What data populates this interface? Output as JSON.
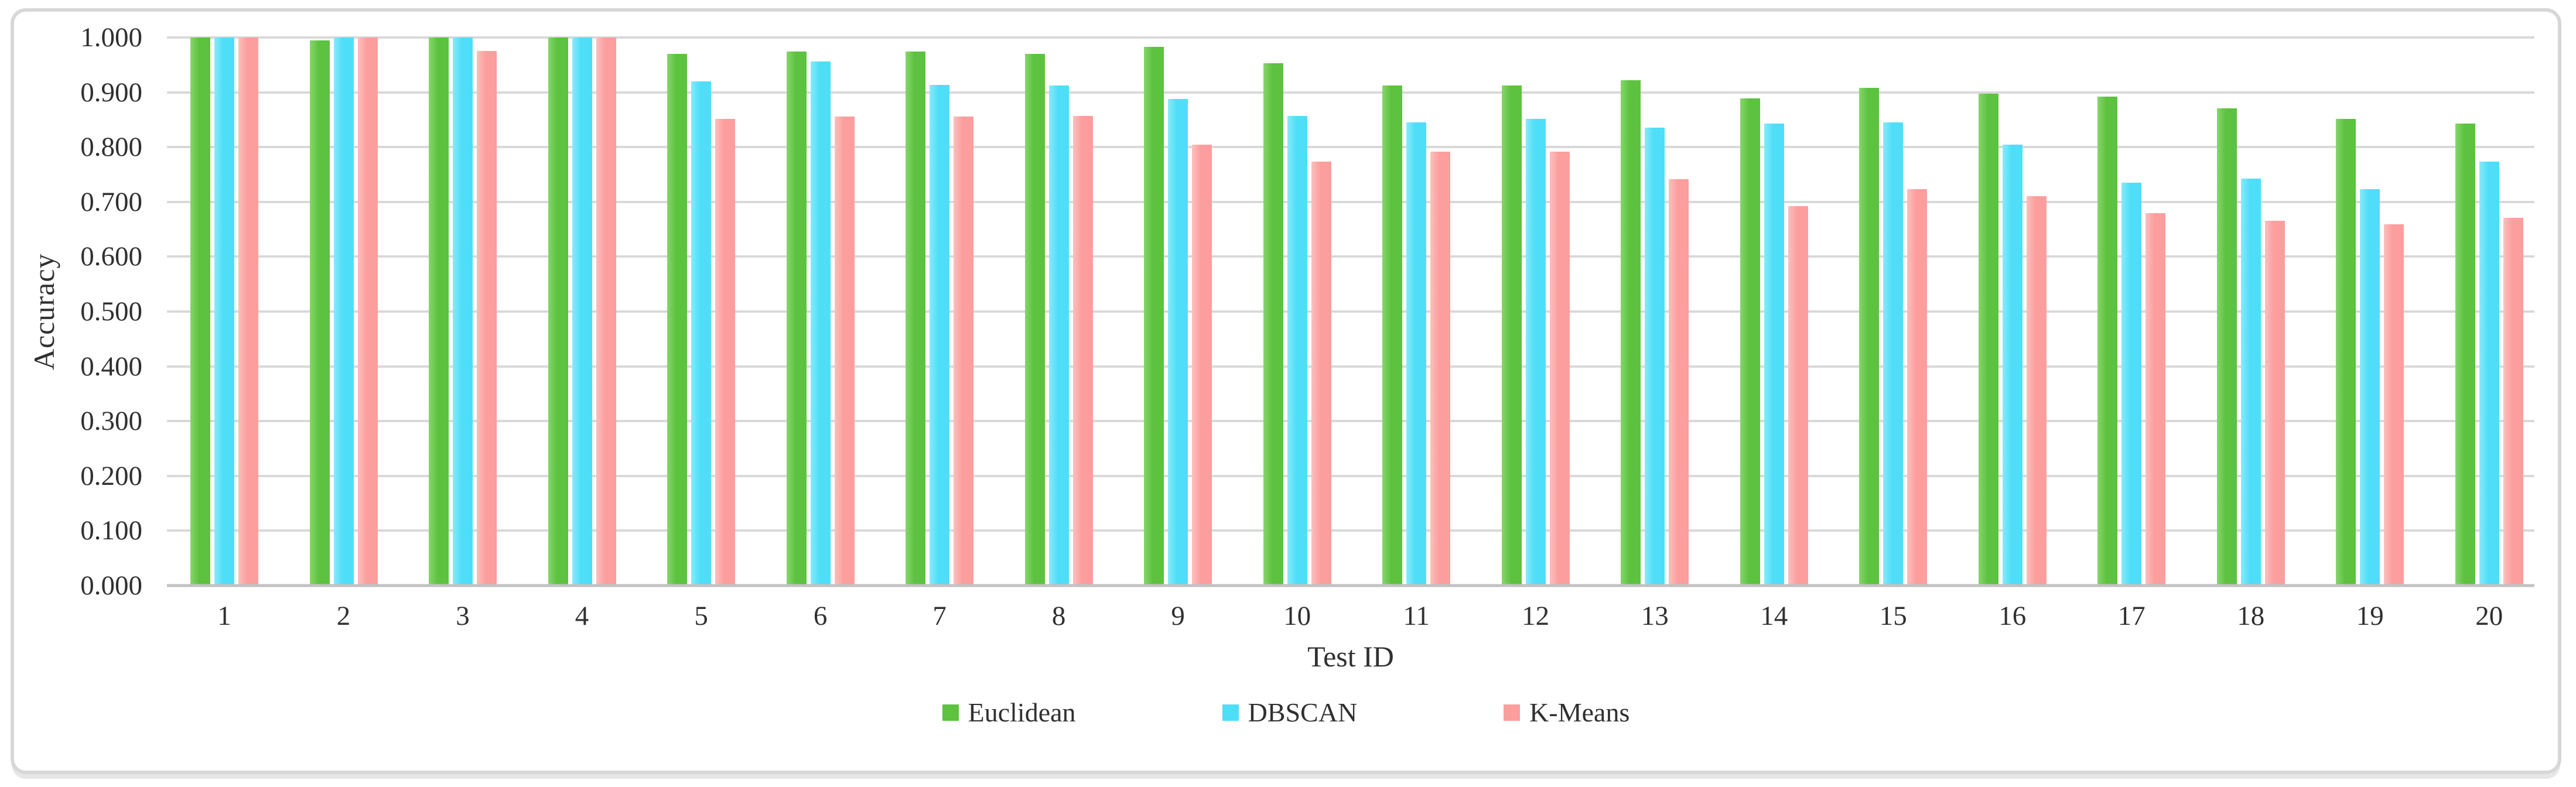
{
  "colors": {
    "euclidean": "#5CC23F",
    "euclidean_light": "#86D66B",
    "dbscan": "#4EDEF8",
    "dbscan_light": "#87EAFB",
    "kmeans": "#FB9E9D",
    "kmeans_light": "#FDBFBD",
    "gridline": "#D9D9D9",
    "axis_line": "#C2C2C2",
    "frame_border": "#D7D7D7",
    "text": "#303030"
  },
  "chart_data": {
    "type": "bar",
    "title": "",
    "xlabel": "Test ID",
    "ylabel": "Accuracy",
    "categories": [
      "1",
      "2",
      "3",
      "4",
      "5",
      "6",
      "7",
      "8",
      "9",
      "10",
      "11",
      "12",
      "13",
      "14",
      "15",
      "16",
      "17",
      "18",
      "19",
      "20"
    ],
    "series": [
      {
        "name": "Euclidean",
        "color_key": "euclidean",
        "values": [
          1.0,
          0.995,
          1.0,
          1.0,
          0.97,
          0.974,
          0.974,
          0.97,
          0.983,
          0.953,
          0.912,
          0.912,
          0.922,
          0.889,
          0.908,
          0.897,
          0.892,
          0.871,
          0.851,
          0.843
        ]
      },
      {
        "name": "DBSCAN",
        "color_key": "dbscan",
        "values": [
          1.0,
          1.0,
          1.0,
          1.0,
          0.92,
          0.956,
          0.914,
          0.912,
          0.888,
          0.857,
          0.845,
          0.852,
          0.836,
          0.843,
          0.845,
          0.804,
          0.735,
          0.743,
          0.723,
          0.773
        ]
      },
      {
        "name": "K-Means",
        "color_key": "kmeans",
        "values": [
          1.0,
          1.0,
          0.975,
          1.0,
          0.851,
          0.856,
          0.856,
          0.857,
          0.805,
          0.774,
          0.792,
          0.792,
          0.741,
          0.692,
          0.723,
          0.711,
          0.679,
          0.666,
          0.659,
          0.671
        ]
      }
    ],
    "ylim": [
      0.0,
      1.0
    ],
    "y_tick_step": 0.1,
    "y_tick_labels": [
      "0.000",
      "0.100",
      "0.200",
      "0.300",
      "0.400",
      "0.500",
      "0.600",
      "0.700",
      "0.800",
      "0.900",
      "1.000"
    ],
    "grid": "horizontal",
    "legend_position": "bottom"
  }
}
